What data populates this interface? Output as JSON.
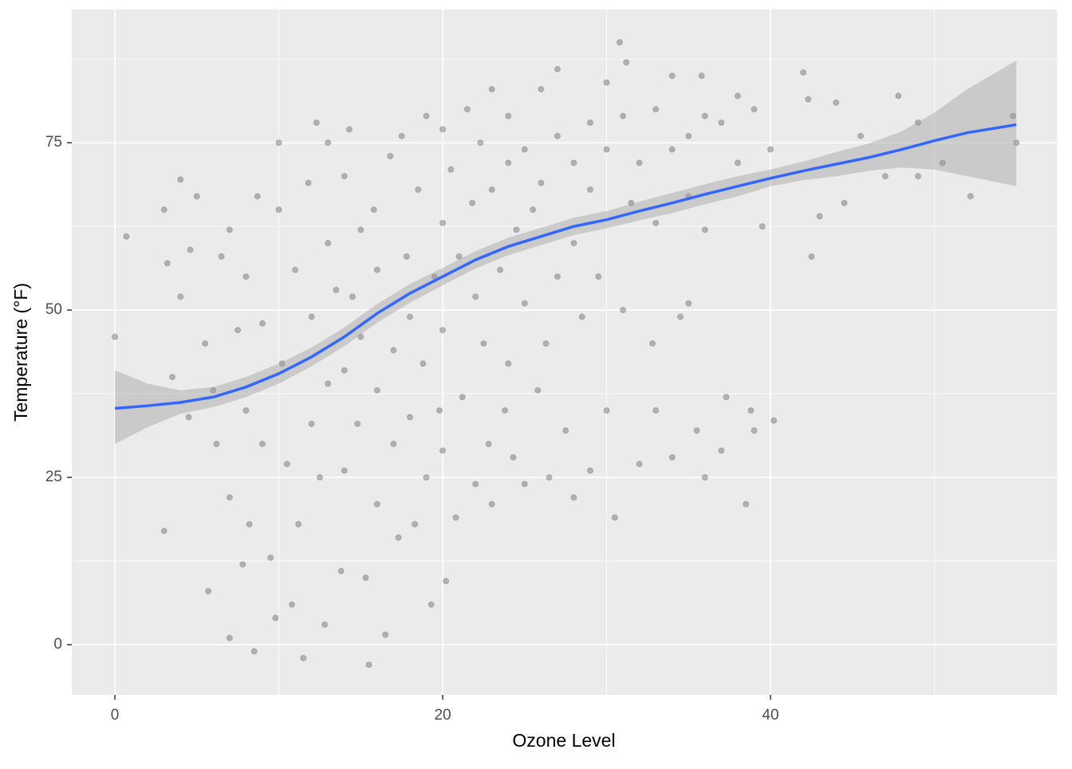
{
  "chart_data": {
    "type": "scatter",
    "x_label": "Ozone Level",
    "y_label": "Temperature (°F)",
    "xlim": [
      -2.63,
      57.47
    ],
    "ylim": [
      -7.5,
      94.9
    ],
    "xticks": [
      0,
      20,
      40
    ],
    "yticks": [
      0,
      25,
      50,
      75
    ],
    "xminor": [
      10,
      30,
      50
    ],
    "yminor": [
      12.5,
      37.5,
      62.5,
      87.5
    ],
    "grid": true,
    "point_color": "#000000",
    "point_opacity": 0.25,
    "x": [
      0,
      0.7,
      3,
      3.2,
      3,
      4,
      4,
      3.5,
      4.5,
      5,
      4.6,
      5.5,
      5.7,
      6,
      6.2,
      6.5,
      7,
      7,
      7,
      7.5,
      7.8,
      8,
      8,
      8.2,
      8.5,
      8.7,
      9,
      9,
      9.5,
      9.8,
      10,
      10,
      10.2,
      10.5,
      10.8,
      11,
      11.2,
      11.5,
      11.8,
      12,
      12,
      12.3,
      12.5,
      12.8,
      13,
      13,
      13,
      13.5,
      13.8,
      14,
      14,
      14,
      14.3,
      14.5,
      14.8,
      15,
      15,
      15.3,
      15.5,
      15.8,
      16,
      16,
      16,
      16.5,
      16.8,
      17,
      17,
      17.3,
      17.5,
      17.8,
      18,
      18,
      18.3,
      18.5,
      18.8,
      19,
      19,
      19.3,
      19.5,
      19.8,
      20,
      20,
      20,
      20,
      20.2,
      20.5,
      20.8,
      21,
      21.2,
      21.5,
      21.8,
      22,
      22,
      22.3,
      22.5,
      22.8,
      23,
      23,
      23,
      23.5,
      23.8,
      24,
      24,
      24,
      24.3,
      24.5,
      25,
      25,
      25,
      25.5,
      25.8,
      26,
      26,
      26.3,
      26.5,
      27,
      27,
      27,
      27.5,
      28,
      28,
      28,
      28.5,
      29,
      29,
      29,
      29.5,
      30,
      30,
      30,
      30.5,
      30.8,
      31,
      31,
      31.2,
      31.5,
      32,
      32,
      32.8,
      33,
      33,
      33,
      34,
      34,
      34,
      34.5,
      35,
      35,
      35,
      35.5,
      35.8,
      36,
      36,
      36,
      37,
      37,
      37.3,
      38,
      38,
      38.5,
      38.8,
      39,
      39,
      39.5,
      40,
      40.2,
      42,
      42.3,
      42.5,
      43,
      44,
      44.5,
      45.5,
      47,
      47.8,
      49,
      49,
      50.5,
      52.2,
      54.8,
      55
    ],
    "y": [
      46,
      61,
      65,
      57,
      17,
      69.5,
      52,
      40,
      34,
      67,
      59,
      45,
      8,
      38,
      30,
      58,
      1,
      62,
      22,
      47,
      12,
      55,
      35,
      18,
      -1,
      67,
      48,
      30,
      13,
      4,
      65,
      75,
      42,
      27,
      6,
      56,
      18,
      -2,
      69,
      49,
      33,
      78,
      25,
      3,
      75,
      60,
      39,
      53,
      11,
      70,
      41,
      26,
      77,
      52,
      33,
      62,
      46,
      10,
      -3,
      65,
      56,
      38,
      21,
      1.5,
      73,
      44,
      30,
      16,
      76,
      58,
      49,
      34,
      18,
      68,
      42,
      79,
      25,
      6,
      55,
      35,
      77,
      63,
      47,
      29,
      9.5,
      71,
      19,
      58,
      37,
      80,
      66,
      52,
      24,
      75,
      45,
      30,
      83,
      68,
      21,
      56,
      35,
      79,
      72,
      42,
      28,
      62,
      74,
      51,
      24,
      65,
      38,
      83,
      69,
      45,
      25,
      86,
      76,
      55,
      32,
      72,
      60,
      22,
      49,
      78,
      68,
      26,
      55,
      84,
      74,
      35,
      19,
      90,
      79,
      50,
      87,
      66,
      72,
      27,
      45,
      80,
      63,
      35,
      85,
      74,
      28,
      49,
      76,
      67,
      51,
      32,
      85,
      79,
      62,
      25,
      78,
      29,
      37,
      82,
      72,
      21,
      35,
      80,
      32,
      62.5,
      74,
      33.5,
      85.5,
      81.5,
      58,
      64,
      81,
      66,
      76,
      70,
      82,
      78,
      70,
      72,
      67,
      79,
      75
    ],
    "smooth": {
      "color": "#3366FF",
      "band_color": "#999999",
      "x": [
        0,
        2,
        4,
        6,
        8,
        10,
        12,
        14,
        16,
        18,
        20,
        22,
        24,
        26,
        28,
        30,
        32,
        34,
        36,
        38,
        40,
        42,
        44,
        46,
        48,
        50,
        52,
        55
      ],
      "values": [
        35.3,
        35.7,
        36.2,
        37,
        38.5,
        40.5,
        43,
        46,
        49.5,
        52.5,
        55,
        57.5,
        59.5,
        61,
        62.5,
        63.5,
        64.8,
        66,
        67.3,
        68.5,
        69.7,
        70.8,
        71.8,
        72.8,
        74,
        75.3,
        76.5,
        77.7
      ],
      "lower": [
        30,
        32.5,
        34.5,
        35.5,
        37,
        39,
        41.6,
        44.6,
        48.1,
        51.1,
        53.7,
        56.2,
        58.2,
        59.7,
        61.2,
        62.2,
        63.4,
        64.5,
        65.8,
        67,
        68.5,
        69.4,
        70,
        70.8,
        71.3,
        71,
        70,
        68.5
      ],
      "upper": [
        41,
        39,
        38,
        38.5,
        40,
        42,
        44.4,
        47.4,
        50.9,
        53.9,
        56.3,
        58.8,
        60.8,
        62.3,
        63.8,
        64.8,
        66.2,
        67.5,
        68.8,
        70,
        71,
        72.2,
        73.6,
        74.9,
        76.7,
        79.5,
        83,
        87.3
      ]
    }
  }
}
